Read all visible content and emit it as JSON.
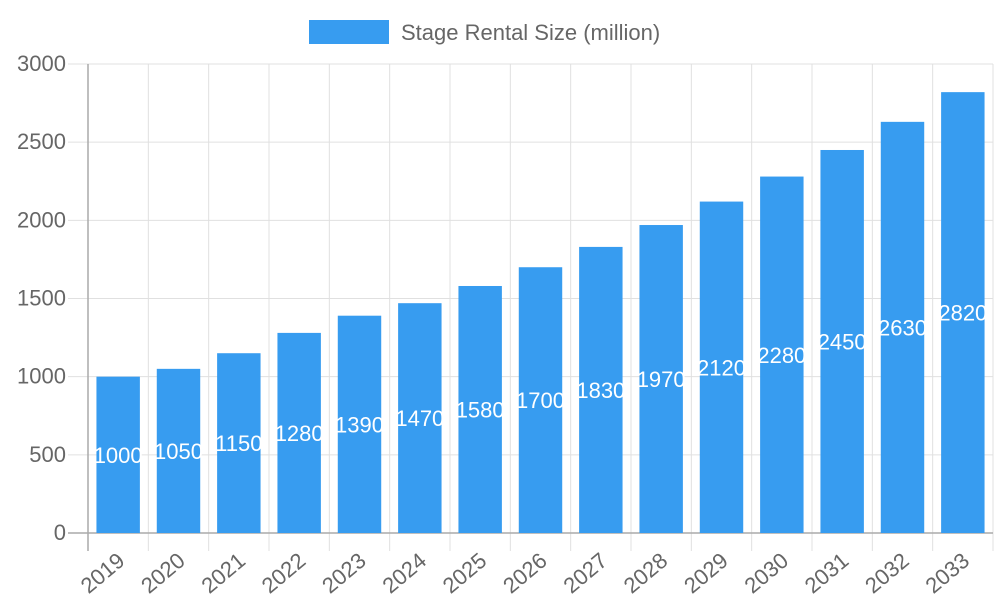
{
  "chart_data": {
    "type": "bar",
    "title": "",
    "xlabel": "",
    "ylabel": "",
    "categories": [
      "2019",
      "2020",
      "2021",
      "2022",
      "2023",
      "2024",
      "2025",
      "2026",
      "2027",
      "2028",
      "2029",
      "2030",
      "2031",
      "2032",
      "2033"
    ],
    "series": [
      {
        "name": "Stage Rental Size (million)",
        "values": [
          1000,
          1050,
          1150,
          1280,
          1390,
          1470,
          1580,
          1700,
          1830,
          1970,
          2120,
          2280,
          2450,
          2630,
          2820
        ],
        "color": "#379cf0"
      }
    ],
    "ylim": [
      0,
      3000
    ],
    "yticks": [
      0,
      500,
      1000,
      1500,
      2000,
      2500,
      3000
    ],
    "grid": true,
    "legend": "top-center",
    "data_labels": true
  }
}
